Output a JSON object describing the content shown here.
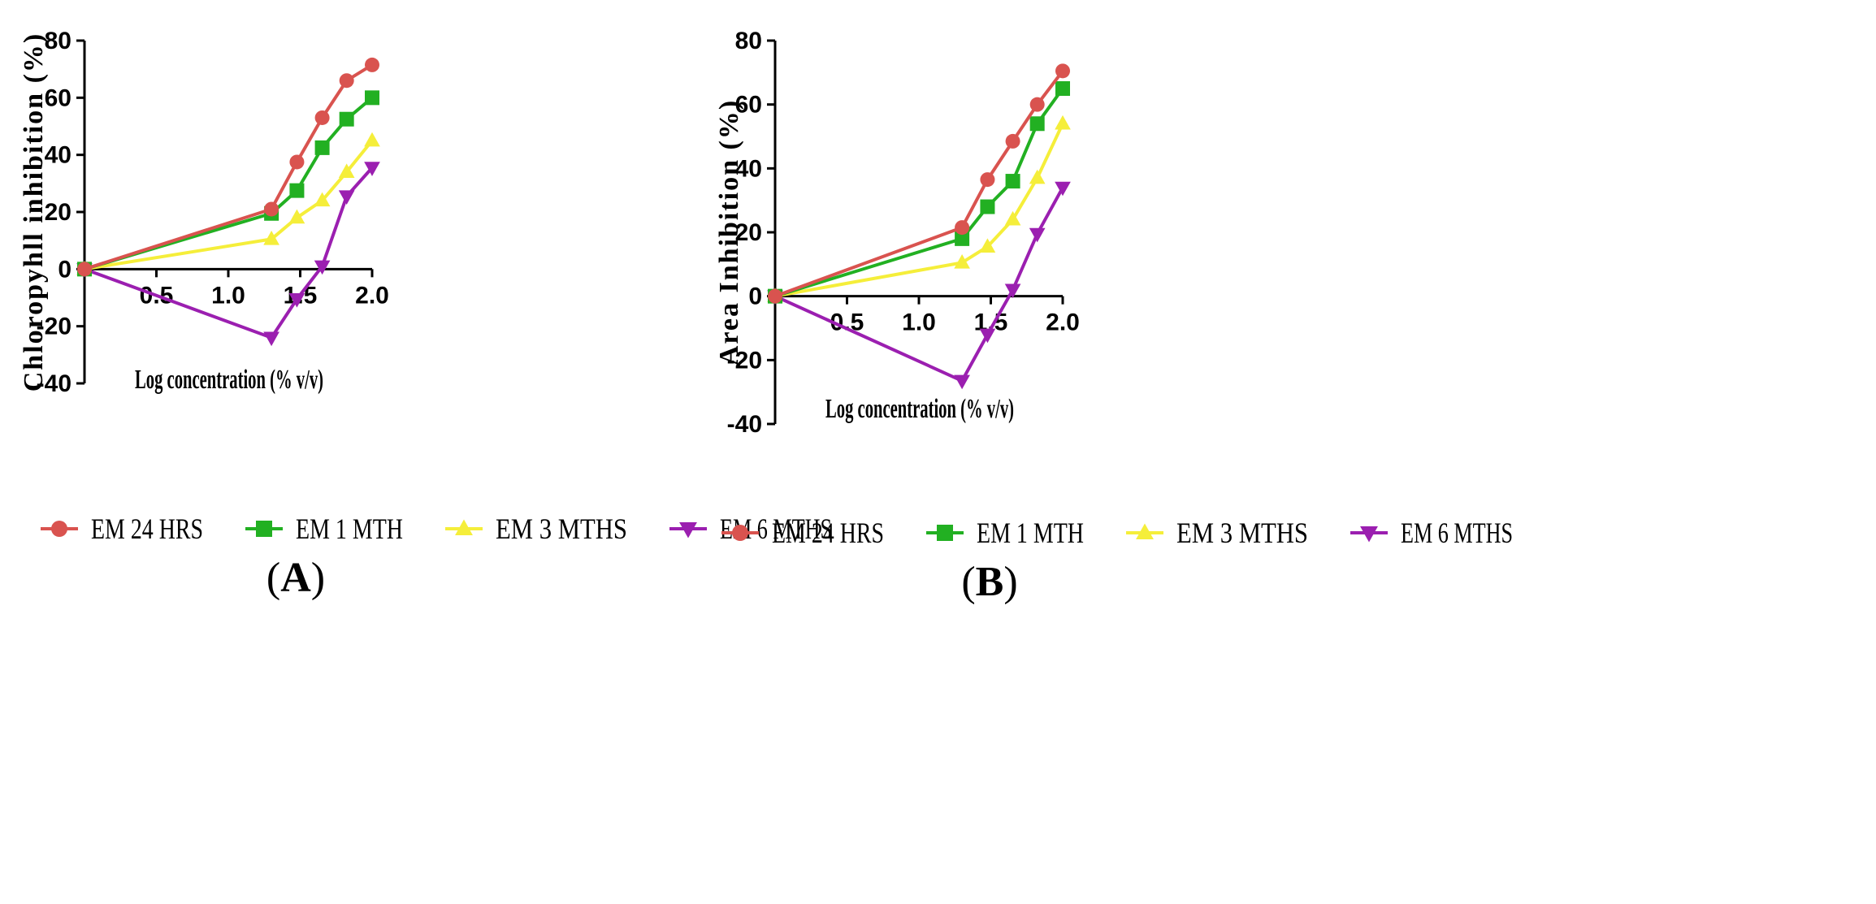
{
  "series_meta": [
    {
      "name": "EM 24 HRS",
      "color": "#d9534f",
      "marker": "circle"
    },
    {
      "name": "EM 1 MTH",
      "color": "#22b022",
      "marker": "square"
    },
    {
      "name": "EM 3 MTHS",
      "color": "#f5ee3a",
      "marker": "triangle-up"
    },
    {
      "name": "EM 6 MTHS",
      "color": "#9b1fb0",
      "marker": "triangle-down"
    }
  ],
  "chart_data": [
    {
      "type": "line",
      "panel_label": "(A)",
      "panel_letter": "A",
      "xlabel": "Log concentration (% v/v)",
      "ylabel": "Chloropyhll inhibition (%)",
      "xlim": [
        0,
        2.0
      ],
      "ylim": [
        -40,
        80
      ],
      "xticks": [
        "0.5",
        "1.0",
        "1.5",
        "2.0"
      ],
      "xtick_values": [
        0.5,
        1.0,
        1.5,
        2.0
      ],
      "yticks": [
        "-40",
        "-20",
        "0",
        "20",
        "40",
        "60",
        "80"
      ],
      "ytick_values": [
        -40,
        -20,
        0,
        20,
        40,
        60,
        80
      ],
      "x": [
        0,
        1.3,
        1.477,
        1.653,
        1.823,
        2.0
      ],
      "series": [
        {
          "name": "EM 24 HRS",
          "values": [
            0,
            21,
            37.5,
            53,
            66,
            71.5
          ]
        },
        {
          "name": "EM 1 MTH",
          "values": [
            0,
            19.5,
            27.5,
            42.5,
            52.5,
            60
          ]
        },
        {
          "name": "EM 3 MTHS",
          "values": [
            0,
            10.5,
            18,
            24,
            34,
            45
          ]
        },
        {
          "name": "EM 6 MTHS",
          "values": [
            0,
            -24,
            -10.5,
            1,
            25.5,
            35.5
          ]
        }
      ],
      "legend": [
        "EM 24 HRS",
        "EM 1 MTH",
        "EM 3 MTHS",
        "EM 6 MTHS"
      ]
    },
    {
      "type": "line",
      "panel_label": "(B)",
      "panel_letter": "B",
      "xlabel": "Log concentration (% v/v)",
      "ylabel": "Area Inhibition  (%)",
      "xlim": [
        0,
        2.0
      ],
      "ylim": [
        -40,
        80
      ],
      "xticks": [
        "0.5",
        "1.0",
        "1.5",
        "2.0"
      ],
      "xtick_values": [
        0.5,
        1.0,
        1.5,
        2.0
      ],
      "yticks": [
        "-40",
        "-20",
        "0",
        "20",
        "40",
        "60",
        "80"
      ],
      "ytick_values": [
        -40,
        -20,
        0,
        20,
        40,
        60,
        80
      ],
      "x": [
        0,
        1.3,
        1.477,
        1.653,
        1.823,
        2.0
      ],
      "series": [
        {
          "name": "EM 24 HRS",
          "values": [
            0,
            21.5,
            36.5,
            48.5,
            60,
            70.5
          ]
        },
        {
          "name": "EM 1 MTH",
          "values": [
            0,
            18,
            28,
            36,
            54,
            65
          ]
        },
        {
          "name": "EM 3 MTHS",
          "values": [
            0,
            10.5,
            15.5,
            24,
            37,
            54
          ]
        },
        {
          "name": "EM 6 MTHS",
          "values": [
            0,
            -26.5,
            -12,
            2,
            19.5,
            34
          ]
        }
      ],
      "legend": [
        "EM 24 HRS",
        "EM 1 MTH",
        "EM 3 MTHS",
        "EM 6 MTHS"
      ]
    }
  ]
}
